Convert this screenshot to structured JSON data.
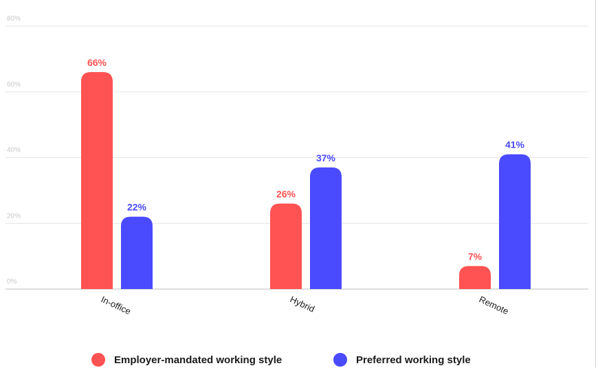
{
  "chart_data": {
    "type": "bar",
    "categories": [
      "In-office",
      "Hybrid",
      "Remote"
    ],
    "series": [
      {
        "name": "Employer-mandated working style",
        "values": [
          66,
          26,
          7
        ],
        "color": "#ff5252"
      },
      {
        "name": "Preferred working style",
        "values": [
          22,
          37,
          41
        ],
        "color": "#4a4aff"
      }
    ],
    "value_labels": [
      [
        "66%",
        "26%",
        "7%"
      ],
      [
        "22%",
        "37%",
        "41%"
      ]
    ],
    "ylim": [
      0,
      80
    ],
    "yticks": [
      0,
      20,
      40,
      60,
      80
    ],
    "ytick_labels": [
      "0%",
      "20%",
      "40%",
      "60%",
      "80%"
    ],
    "grid": true,
    "legend_position": "bottom",
    "title": "",
    "xlabel": "",
    "ylabel": ""
  },
  "legend": {
    "items": [
      {
        "label": "Employer-mandated working style",
        "color": "#ff5252"
      },
      {
        "label": "Preferred working style",
        "color": "#4a4aff"
      }
    ]
  }
}
